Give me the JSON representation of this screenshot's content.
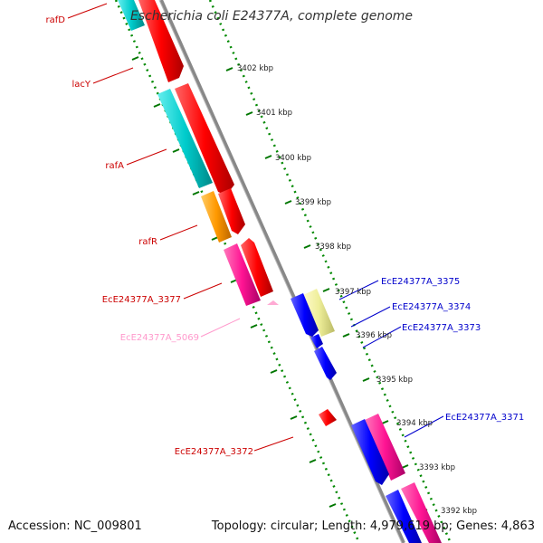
{
  "title": "Escherichia coli E24377A, complete genome",
  "footer": {
    "accession": "Accession: NC_009801",
    "topology": "Topology: circular; Length: 4,979,619 bp; Genes: 4,863"
  },
  "scale_labels": [
    "3402 kbp",
    "3401 kbp",
    "3400 kbp",
    "3399 kbp",
    "3398 kbp",
    "3397 kbp",
    "3396 kbp",
    "3395 kbp",
    "3394 kbp",
    "3393 kbp",
    "3392 kbp"
  ],
  "gene_labels_left": [
    "rafD",
    "lacY",
    "rafA",
    "rafR",
    "EcE24377A_3377",
    "EcE24377A_5069",
    "EcE24377A_3372"
  ],
  "gene_labels_right": [
    "EcE24377A_3375",
    "EcE24377A_3374",
    "EcE24377A_3373",
    "EcE24377A_3371"
  ],
  "colors": {
    "red": "#ff0000",
    "cyan": "#00cccc",
    "orange": "#ff9900",
    "magenta": "#ff1493",
    "blue": "#0000ff",
    "yellow": "#eeee99",
    "pink": "#ff99cc",
    "backbone": "#888888",
    "ticks": "#007700",
    "label_red": "#cc0000",
    "label_blue": "#0000cc",
    "label_pink": "#ff99cc"
  }
}
